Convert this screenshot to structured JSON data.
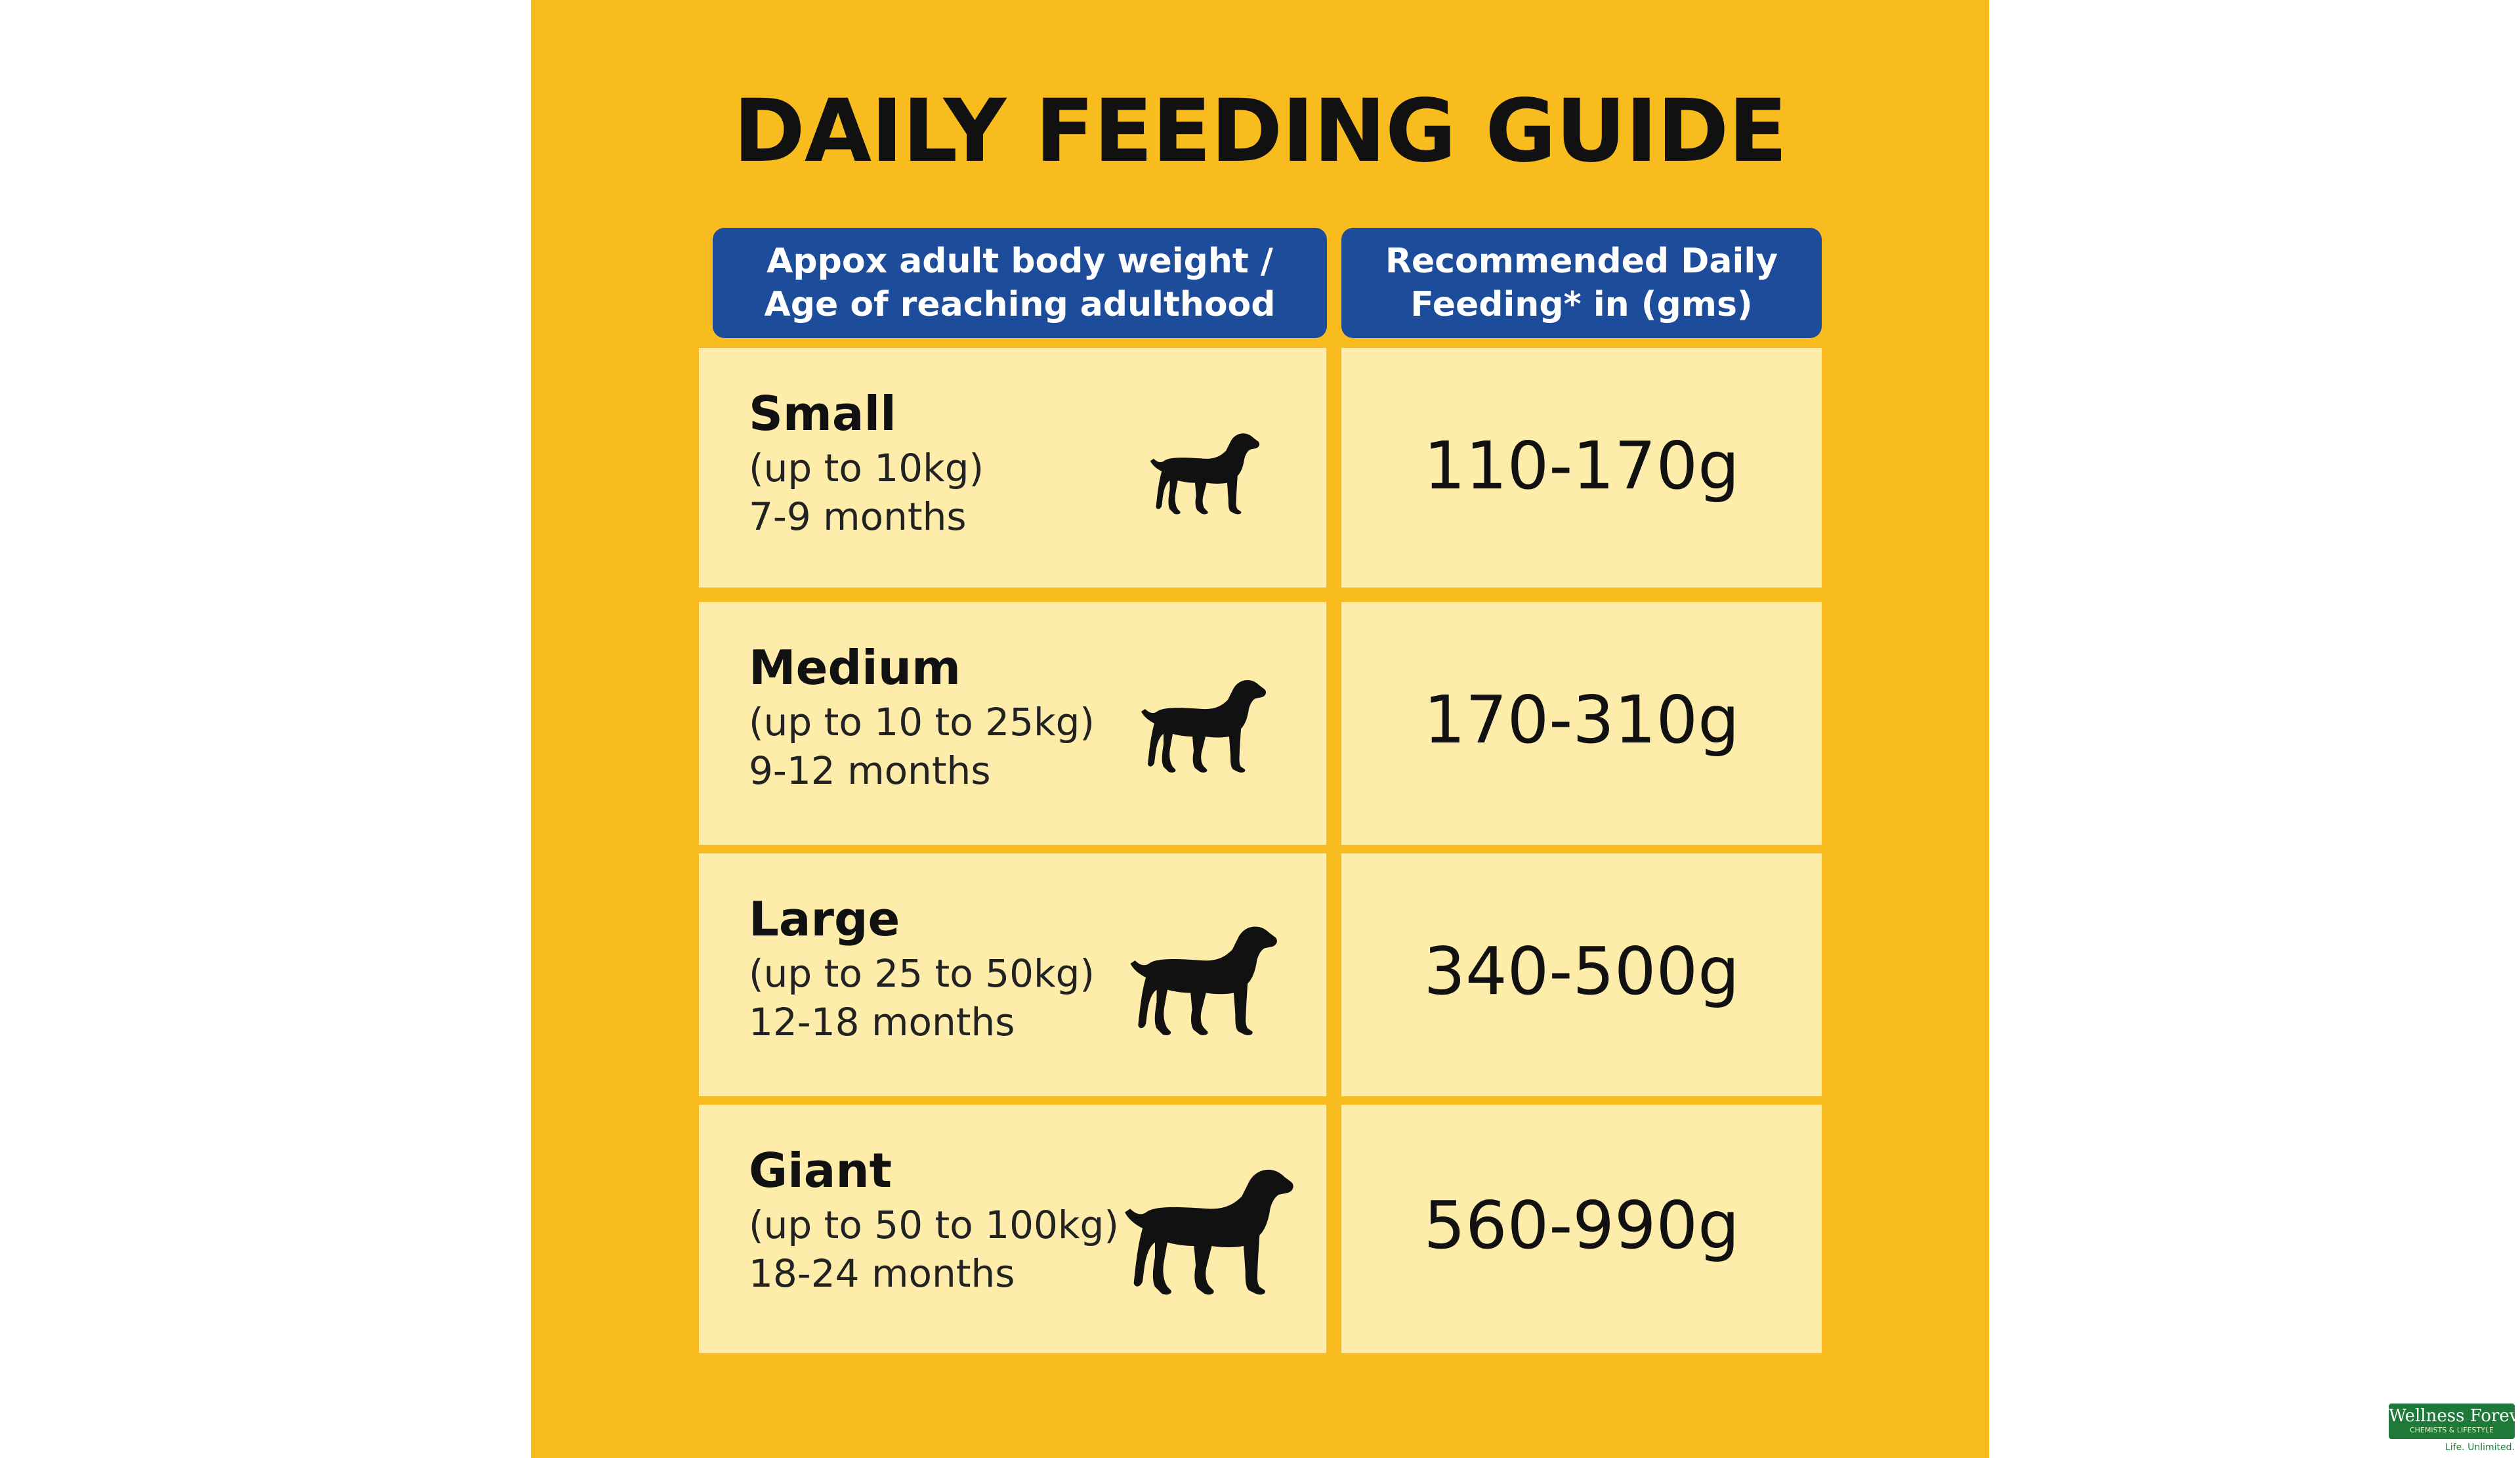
{
  "title": "DAILY FEEDING GUIDE",
  "table": {
    "headers": {
      "left_line1": "Appox adult body weight /",
      "left_line2": "Age of reaching adulthood",
      "right_line1": "Recommended Daily",
      "right_line2": "Feeding* in (gms)"
    },
    "rows": [
      {
        "size": "Small",
        "weight": "(up to 10kg)",
        "age": "7-9 months",
        "amount": "110-170g",
        "icon": "dog-icon"
      },
      {
        "size": "Medium",
        "weight": "(up to 10 to 25kg)",
        "age": "9-12 months",
        "amount": "170-310g",
        "icon": "dog-icon"
      },
      {
        "size": "Large",
        "weight": "(up to 25 to 50kg)",
        "age": "12-18 months",
        "amount": "340-500g",
        "icon": "dog-icon"
      },
      {
        "size": "Giant",
        "weight": "(up to 50 to 100kg)",
        "age": "18-24 months",
        "amount": "560-990g",
        "icon": "dog-icon"
      }
    ]
  },
  "logo": {
    "name": "Wellness Forever",
    "subtitle": "CHEMISTS & LIFESTYLE",
    "tagline": "Life. Unlimited."
  },
  "colors": {
    "background": "#f8bc1e",
    "header": "#1d4c9a",
    "cell": "#fdecaa",
    "logo_green": "#1f7a3a"
  }
}
